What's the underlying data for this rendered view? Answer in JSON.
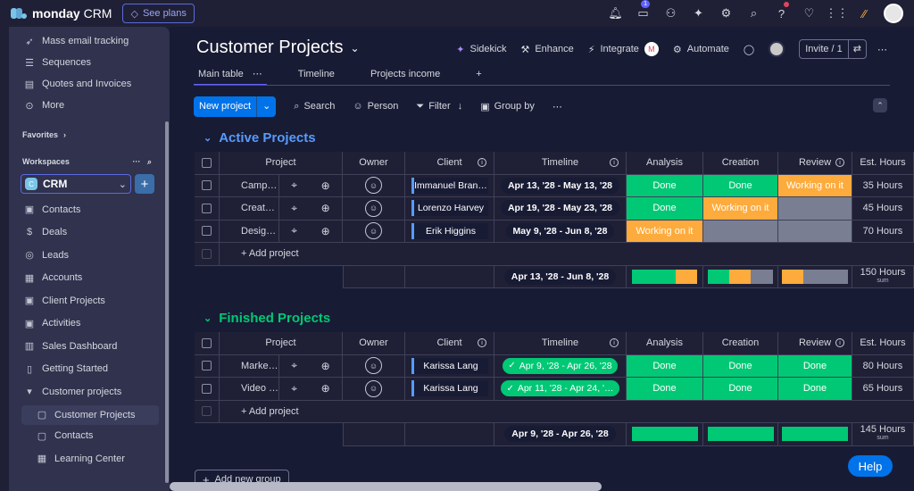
{
  "app": {
    "brand": "monday",
    "product": "CRM",
    "see_plans": "See plans",
    "inbox_badge": "1"
  },
  "sidebar": {
    "top_items": [
      {
        "label": "Mass email tracking",
        "icon": "rocket-icon"
      },
      {
        "label": "Sequences",
        "icon": "list-icon"
      },
      {
        "label": "Quotes and Invoices",
        "icon": "document-icon"
      },
      {
        "label": "More",
        "icon": "more-circle-icon"
      }
    ],
    "favorites_label": "Favorites",
    "workspaces_label": "Workspaces",
    "workspace_name": "CRM",
    "workspace_initial": "C",
    "nav_items": [
      {
        "label": "Contacts",
        "icon": "board-icon"
      },
      {
        "label": "Deals",
        "icon": "dollar-icon"
      },
      {
        "label": "Leads",
        "icon": "target-icon"
      },
      {
        "label": "Accounts",
        "icon": "building-icon"
      },
      {
        "label": "Client Projects",
        "icon": "board-icon"
      },
      {
        "label": "Activities",
        "icon": "board-icon"
      },
      {
        "label": "Sales Dashboard",
        "icon": "dashboard-icon"
      },
      {
        "label": "Getting Started",
        "icon": "doc-icon"
      },
      {
        "label": "Customer projects",
        "icon": "folder-caret-icon"
      }
    ],
    "sub_items": [
      {
        "label": "Customer Projects",
        "icon": "board-icon"
      },
      {
        "label": "Contacts",
        "icon": "board-icon"
      },
      {
        "label": "Learning Center",
        "icon": "board-icon"
      }
    ]
  },
  "board": {
    "title": "Customer Projects",
    "actions": {
      "sidekick": "Sidekick",
      "enhance": "Enhance",
      "integrate": "Integrate",
      "automate": "Automate",
      "invite": "Invite / 1"
    },
    "tabs": [
      "Main table",
      "Timeline",
      "Projects income"
    ],
    "toolbar": {
      "new_project": "New project",
      "search": "Search",
      "person": "Person",
      "filter": "Filter",
      "group_by": "Group by"
    },
    "columns": {
      "project": "Project",
      "owner": "Owner",
      "client": "Client",
      "timeline": "Timeline",
      "analysis": "Analysis",
      "creation": "Creation",
      "review": "Review",
      "hours": "Est. Hours"
    },
    "add_project": "+ Add project",
    "add_group": "Add new group",
    "sum_label": "sum",
    "colors": {
      "done": "#00c875",
      "working": "#fdab3d",
      "empty": "#797e93",
      "active_group": "#579bfc",
      "finished_group": "#00c875"
    }
  },
  "groups": [
    {
      "title": "Active Projects",
      "rows": [
        {
          "project": "Camp…",
          "client": "Immanuel Bran…",
          "timeline": "Apr 13, '28 - May 13, '28",
          "analysis": "Done",
          "creation": "Done",
          "review": "Working on it",
          "hours": "35 Hours"
        },
        {
          "project": "Creat…",
          "client": "Lorenzo Harvey",
          "timeline": "Apr 19, '28 - May 23, '28",
          "analysis": "Done",
          "creation": "Working on it",
          "review": "",
          "hours": "45 Hours"
        },
        {
          "project": "Desig…",
          "client": "Erik Higgins",
          "timeline": "May 9, '28 - Jun 8, '28",
          "analysis": "Working on it",
          "creation": "",
          "review": "",
          "hours": "70 Hours"
        }
      ],
      "summary": {
        "timeline": "Apr 13, '28 - Jun 8, '28",
        "hours": "150 Hours"
      }
    },
    {
      "title": "Finished Projects",
      "rows": [
        {
          "project": "Marke…",
          "client": "Karissa Lang",
          "timeline": "Apr 9, '28 - Apr 26, '28",
          "analysis": "Done",
          "creation": "Done",
          "review": "Done",
          "hours": "80 Hours"
        },
        {
          "project": "Video …",
          "client": "Karissa Lang",
          "timeline": "Apr 11, '28 - Apr 24, '…",
          "analysis": "Done",
          "creation": "Done",
          "review": "Done",
          "hours": "65 Hours"
        }
      ],
      "summary": {
        "timeline": "Apr 9, '28 - Apr 26, '28",
        "hours": "145 Hours"
      }
    }
  ],
  "help": "Help"
}
